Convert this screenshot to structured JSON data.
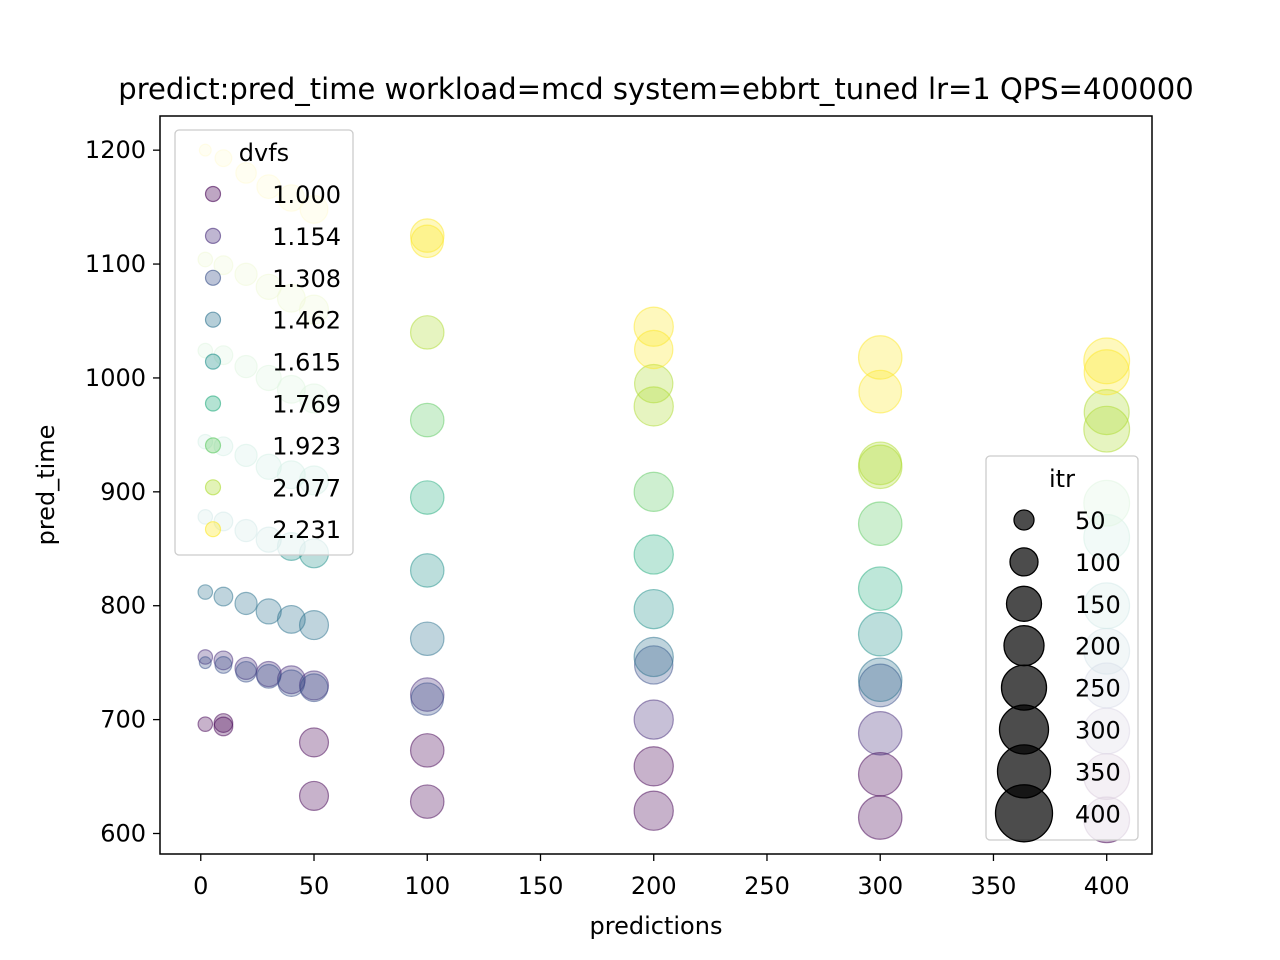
{
  "chart_data": {
    "type": "scatter",
    "title": "predict:pred_time workload=mcd system=ebbrt_tuned lr=1 QPS=400000",
    "xlabel": "predictions",
    "ylabel": "pred_time",
    "xlim": [
      -18,
      420
    ],
    "ylim": [
      582,
      1230
    ],
    "xticks": [
      0,
      50,
      100,
      150,
      200,
      250,
      300,
      350,
      400
    ],
    "yticks": [
      600,
      700,
      800,
      900,
      1000,
      1100,
      1200
    ],
    "grid": false,
    "colormap": [
      "#440154",
      "#472d7b",
      "#3b528b",
      "#2c728e",
      "#21918c",
      "#28ae80",
      "#5ec962",
      "#addc30",
      "#fde725"
    ],
    "dvfs_legend": {
      "title": "dvfs",
      "placement": "upper-left",
      "entries": [
        "1.000",
        "1.154",
        "1.308",
        "1.462",
        "1.615",
        "1.769",
        "1.923",
        "2.077",
        "2.231"
      ]
    },
    "itr_legend": {
      "title": "itr",
      "placement": "lower-right",
      "entries": [
        "50",
        "100",
        "150",
        "200",
        "250",
        "300",
        "350",
        "400"
      ]
    },
    "series": [
      {
        "dvfs": 1.0,
        "x": [
          2,
          10,
          50,
          100,
          200,
          300,
          400
        ],
        "y": [
          696,
          694,
          633,
          628,
          620,
          614,
          612
        ],
        "itr": [
          30,
          50,
          120,
          160,
          220,
          270,
          300
        ]
      },
      {
        "dvfs": 1.0,
        "x": [
          10,
          50,
          100,
          200,
          300,
          400
        ],
        "y": [
          697,
          680,
          673,
          659,
          652,
          650
        ],
        "itr": [
          50,
          120,
          160,
          220,
          270,
          300
        ]
      },
      {
        "dvfs": 1.154,
        "x": [
          2,
          10,
          20,
          30,
          40,
          50,
          100,
          200,
          300,
          400
        ],
        "y": [
          755,
          752,
          745,
          740,
          735,
          730,
          722,
          700,
          688,
          690
        ],
        "itr": [
          30,
          50,
          70,
          90,
          110,
          120,
          160,
          220,
          270,
          300
        ]
      },
      {
        "dvfs": 1.308,
        "x": [
          2,
          10,
          20,
          30,
          40,
          50,
          100,
          200,
          300,
          400
        ],
        "y": [
          750,
          748,
          742,
          738,
          732,
          728,
          718,
          748,
          730,
          730
        ],
        "itr": [
          20,
          40,
          60,
          80,
          100,
          110,
          150,
          210,
          260,
          290
        ]
      },
      {
        "dvfs": 1.462,
        "x": [
          2,
          10,
          20,
          30,
          40,
          50,
          100,
          200,
          300,
          400
        ],
        "y": [
          812,
          808,
          802,
          795,
          788,
          783,
          771,
          755,
          735,
          760
        ],
        "itr": [
          30,
          50,
          70,
          90,
          110,
          120,
          160,
          220,
          270,
          300
        ]
      },
      {
        "dvfs": 1.615,
        "x": [
          2,
          10,
          20,
          30,
          40,
          50,
          100,
          200,
          300,
          400
        ],
        "y": [
          878,
          874,
          866,
          858,
          852,
          846,
          831,
          797,
          775,
          800
        ],
        "itr": [
          30,
          50,
          70,
          90,
          110,
          120,
          160,
          220,
          270,
          300
        ]
      },
      {
        "dvfs": 1.769,
        "x": [
          2,
          10,
          20,
          30,
          40,
          50,
          100,
          200,
          300,
          400
        ],
        "y": [
          944,
          940,
          932,
          922,
          915,
          910,
          895,
          845,
          815,
          860
        ],
        "itr": [
          30,
          50,
          70,
          90,
          110,
          120,
          160,
          220,
          270,
          300
        ]
      },
      {
        "dvfs": 1.923,
        "x": [
          2,
          10,
          20,
          30,
          40,
          50,
          100,
          200,
          300,
          400
        ],
        "y": [
          1024,
          1020,
          1010,
          1000,
          990,
          982,
          963,
          900,
          872,
          890
        ],
        "itr": [
          30,
          50,
          70,
          90,
          110,
          120,
          160,
          220,
          270,
          300
        ]
      },
      {
        "dvfs": 2.077,
        "x": [
          2,
          10,
          20,
          30,
          40,
          50,
          100,
          200,
          300,
          400
        ],
        "y": [
          1104,
          1099,
          1091,
          1080,
          1070,
          1060,
          1040,
          975,
          922,
          955
        ],
        "itr": [
          30,
          50,
          70,
          90,
          110,
          120,
          160,
          220,
          270,
          300
        ]
      },
      {
        "dvfs": 2.077,
        "x": [
          200,
          300,
          400
        ],
        "y": [
          995,
          925,
          970
        ],
        "itr": [
          210,
          260,
          290
        ]
      },
      {
        "dvfs": 2.231,
        "x": [
          2,
          10,
          20,
          30,
          40,
          50,
          100,
          200,
          300,
          400
        ],
        "y": [
          1200,
          1193,
          1180,
          1168,
          1158,
          1148,
          1125,
          1045,
          1018,
          1015
        ],
        "itr": [
          20,
          40,
          60,
          80,
          100,
          110,
          160,
          220,
          270,
          300
        ]
      },
      {
        "dvfs": 2.231,
        "x": [
          100,
          200,
          300,
          400
        ],
        "y": [
          1120,
          1025,
          988,
          1005
        ],
        "itr": [
          150,
          210,
          260,
          290
        ]
      }
    ]
  }
}
